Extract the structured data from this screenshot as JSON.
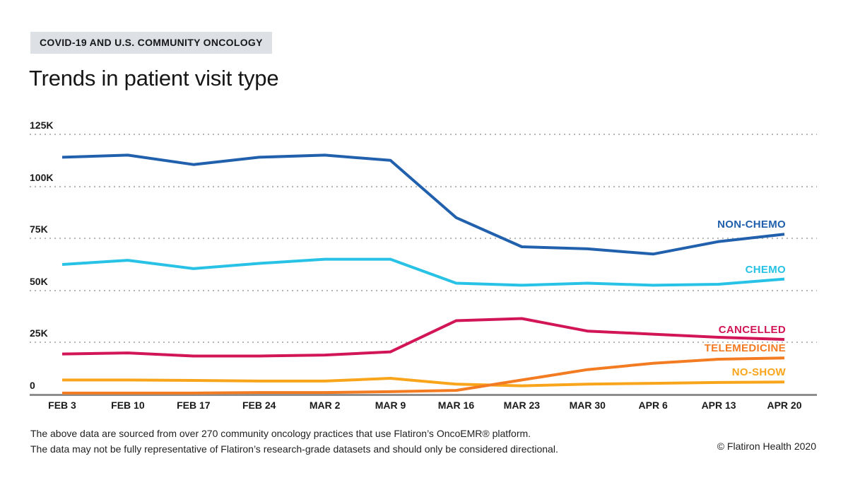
{
  "header": {
    "tag": "COVID-19 AND U.S. COMMUNITY ONCOLOGY",
    "title": "Trends in patient visit type"
  },
  "chart_data": {
    "type": "line",
    "title": "Trends in patient visit type",
    "xlabel": "",
    "ylabel": "",
    "unit": "visits, thousands (K)",
    "ylim": [
      0,
      125
    ],
    "grid": "dotted horizontal gridlines, solid baseline at 0",
    "legend_position": "right, colored labels at end of each line",
    "categories": [
      "FEB 3",
      "FEB 10",
      "FEB 17",
      "FEB 24",
      "MAR 2",
      "MAR 9",
      "MAR 16",
      "MAR 23",
      "MAR 30",
      "APR 6",
      "APR 13",
      "APR 20"
    ],
    "yticks": [
      {
        "label": "0",
        "value": 0
      },
      {
        "label": "25K",
        "value": 25
      },
      {
        "label": "50K",
        "value": 50
      },
      {
        "label": "75K",
        "value": 75
      },
      {
        "label": "100K",
        "value": 100
      },
      {
        "label": "125K",
        "value": 125
      }
    ],
    "series": [
      {
        "name": "NON-CHEMO",
        "color": "#2160ac",
        "values": [
          114,
          115,
          110.5,
          114,
          115,
          112.5,
          85,
          71,
          70,
          67.5,
          73.5,
          77
        ]
      },
      {
        "name": "CHEMO",
        "color": "#27c2e5",
        "values": [
          62.5,
          64.5,
          60.5,
          63,
          65,
          65,
          53.5,
          52.5,
          53.5,
          52.5,
          53,
          55.5
        ]
      },
      {
        "name": "CANCELLED",
        "color": "#d11556",
        "values": [
          19.5,
          20,
          18.5,
          18.5,
          19,
          20.5,
          35.5,
          36.5,
          30.5,
          29,
          27.5,
          26.5
        ]
      },
      {
        "name": "TELEMEDICINE",
        "color": "#f37b21",
        "values": [
          0.7,
          0.7,
          0.7,
          1,
          1,
          1.4,
          2,
          7,
          12,
          15,
          17,
          17.6
        ]
      },
      {
        "name": "NO-SHOW",
        "color": "#f9a51b",
        "values": [
          7,
          7,
          6.8,
          6.5,
          6.5,
          7.8,
          5,
          4.2,
          5,
          5.4,
          5.8,
          6
        ]
      }
    ]
  },
  "footer": {
    "line1": "The above data are sourced from over 270 community oncology practices that use Flatiron’s OncoEMR® platform.",
    "line2": "The data may not be fully representative of Flatiron’s research-grade datasets and should only be considered directional.",
    "copyright": "© Flatiron Health 2020"
  }
}
